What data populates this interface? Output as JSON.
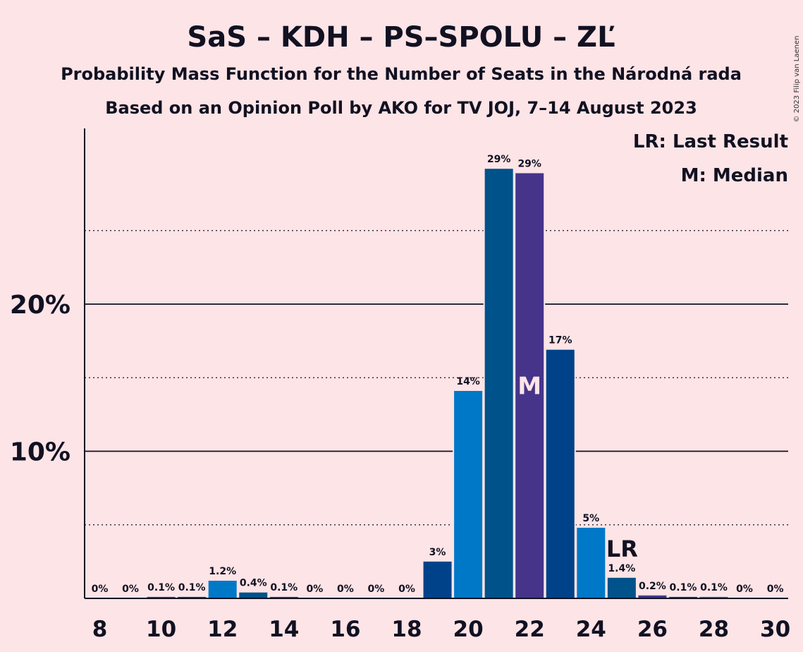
{
  "header": {
    "title": "SaS – KDH – PS–SPOLU – ZĽ",
    "subtitle1": "Probability Mass Function for the Number of Seats in the Národná rada",
    "subtitle2": "Based on an Opinion Poll by AKO for TV JOJ, 7–14 August 2023",
    "copyright": "© 2023 Filip van Laenen"
  },
  "legend": {
    "last_result": "LR: Last Result",
    "median": "M: Median"
  },
  "chart_data": {
    "type": "bar",
    "x": [
      8,
      9,
      10,
      11,
      12,
      13,
      14,
      15,
      16,
      17,
      18,
      19,
      20,
      21,
      22,
      23,
      24,
      25,
      26,
      27,
      28,
      29,
      30
    ],
    "values": [
      0,
      0,
      0.1,
      0.1,
      1.2,
      0.4,
      0.1,
      0,
      0,
      0,
      0,
      2.5,
      14.1,
      29.2,
      28.9,
      16.9,
      4.8,
      1.4,
      0.2,
      0.1,
      0.1,
      0,
      0
    ],
    "value_labels": [
      "0%",
      "0%",
      "0.1%",
      "0.1%",
      "1.2%",
      "0.4%",
      "0.1%",
      "0%",
      "0%",
      "0%",
      "0%",
      "3%",
      "14%",
      "29%",
      "29%",
      "17%",
      "5%",
      "1.4%",
      "0.2%",
      "0.1%",
      "0.1%",
      "0%",
      "0%"
    ],
    "x_ticks": [
      "8",
      "10",
      "12",
      "14",
      "16",
      "18",
      "20",
      "22",
      "24",
      "26",
      "28",
      "30"
    ],
    "y_ticks": [
      {
        "value": 10,
        "label": "10%"
      },
      {
        "value": 20,
        "label": "20%"
      }
    ],
    "y_minor_gridlines": [
      5,
      15,
      25
    ],
    "ylim": [
      0,
      31.8
    ],
    "median_seat": 22,
    "median_marker": "M",
    "last_result_seat": 25,
    "last_result_marker": "LR",
    "bar_colors": [
      "#0078C8",
      "#00528A",
      "#45348A",
      "#004289"
    ]
  }
}
